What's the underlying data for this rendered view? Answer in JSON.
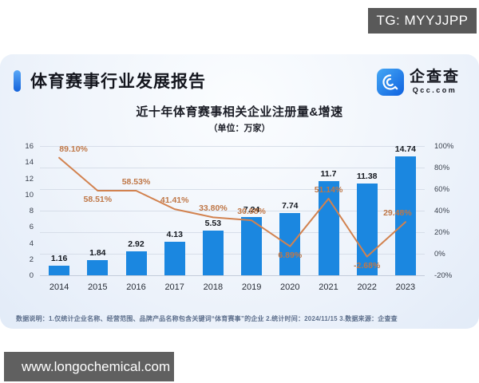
{
  "overlays": {
    "tg_badge": "TG: MYYJJPP",
    "site_badge": "www.longochemical.com"
  },
  "header": {
    "title": "体育赛事行业发展报告",
    "logo": {
      "name": "企查查",
      "domain": "Qcc.com",
      "icon": "qcc-magnifier-icon",
      "color": "#1a7af0"
    }
  },
  "chart_data": {
    "type": "bar",
    "title": "近十年体育赛事相关企业注册量&增速",
    "subtitle": "（单位：万家）",
    "categories": [
      "2014",
      "2015",
      "2016",
      "2017",
      "2018",
      "2019",
      "2020",
      "2021",
      "2022",
      "2023"
    ],
    "series": [
      {
        "name": "企业注册量",
        "type": "bar",
        "axis": "left",
        "color": "#1b87e0",
        "values": [
          1.16,
          1.84,
          2.92,
          4.13,
          5.53,
          7.24,
          7.74,
          11.7,
          11.38,
          14.74
        ],
        "labels": [
          "1.16",
          "1.84",
          "2.92",
          "4.13",
          "5.53",
          "7.24",
          "7.74",
          "11.7",
          "11.38",
          "14.74"
        ]
      },
      {
        "name": "注册量增速",
        "type": "line",
        "axis": "right",
        "color": "#d2824f",
        "values": [
          89.1,
          58.51,
          58.53,
          41.41,
          33.8,
          30.98,
          6.89,
          51.14,
          -2.68,
          29.48
        ],
        "labels": [
          "89.10%",
          "58.51%",
          "58.53%",
          "41.41%",
          "33.80%",
          "30.98%",
          "6.89%",
          "51.14%",
          "-2.68%",
          "29.48%"
        ]
      }
    ],
    "left_axis": {
      "min": 0,
      "max": 16,
      "step": 2,
      "ticks": [
        "0",
        "2",
        "4",
        "6",
        "8",
        "10",
        "12",
        "14",
        "16"
      ]
    },
    "right_axis": {
      "min": -20,
      "max": 100,
      "step": 20,
      "ticks": [
        "100%",
        "80%",
        "60%",
        "40%",
        "20%",
        "0%",
        "-20%"
      ]
    },
    "grid": true,
    "legend": false
  },
  "footnote": "数据说明：1.仅统计企业名称、经营范围、品牌产品名称包含关键词“体育赛事”的企业  2.统计时间：2024/11/15   3.数据来源：企查查"
}
